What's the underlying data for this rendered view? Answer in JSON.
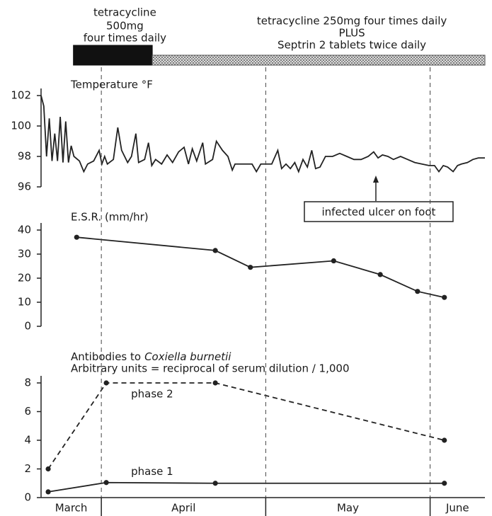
{
  "chart_data": [
    {
      "type": "timeline",
      "xlim": [
        20,
        101
      ],
      "treatments": [
        {
          "lines": [
            "tetracycline",
            "500mg",
            "four times daily"
          ],
          "start": 25.9,
          "end": 40.3,
          "fill": "solid",
          "color": "#111111"
        },
        {
          "lines": [
            "tetracycline 250mg four times daily",
            "PLUS",
            "Septrin 2 tablets twice daily"
          ],
          "start": 40.3,
          "end": 101,
          "fill": "stipple",
          "color": "#555555"
        }
      ]
    },
    {
      "type": "line",
      "title": "Temperature °F",
      "xlim": [
        20,
        101
      ],
      "ylim": [
        96,
        102
      ],
      "yticks": [
        96,
        98,
        100,
        102
      ],
      "markers": false,
      "x": [
        20,
        20.5,
        21,
        21.5,
        22,
        22.5,
        23,
        23.5,
        24,
        24.5,
        25,
        25.5,
        26,
        27,
        27.8,
        28.5,
        29.6,
        30.6,
        31.1,
        31.6,
        32.1,
        33.2,
        34,
        34.7,
        35.8,
        36.5,
        37.3,
        37.8,
        38.9,
        39.6,
        40.2,
        40.9,
        42,
        43,
        44,
        45.1,
        46.1,
        46.9,
        47.6,
        48.4,
        49.5,
        50,
        51.3,
        52,
        53.1,
        54.1,
        54.9,
        55.4,
        56.4,
        57.7,
        58.5,
        59.3,
        60.1,
        61.1,
        62.1,
        63.2,
        63.9,
        64.7,
        65.5,
        66.3,
        67,
        67.8,
        68.6,
        69.4,
        70.1,
        70.9,
        71.9,
        73.2,
        74.5,
        75.8,
        77.1,
        78.4,
        79.7,
        80.7,
        81.5,
        82.3,
        83.3,
        84.3,
        85.6,
        86.9,
        88.2,
        89.5,
        90.8,
        91.8,
        92.6,
        93.4,
        94.2,
        95.2,
        96,
        96.7,
        97.8,
        98.8,
        99.8,
        101
      ],
      "series": [
        {
          "color": "#222222",
          "values": [
            102,
            101.3,
            98,
            100.5,
            97.7,
            99.5,
            97.7,
            100.6,
            97.6,
            100.3,
            97.6,
            98.7,
            98,
            97.7,
            97,
            97.5,
            97.7,
            98.4,
            97.5,
            98,
            97.5,
            97.8,
            99.9,
            98.4,
            97.6,
            98,
            99.5,
            97.6,
            97.8,
            98.9,
            97.4,
            97.8,
            97.5,
            98.1,
            97.6,
            98.3,
            98.6,
            97.5,
            98.5,
            97.7,
            98.9,
            97.5,
            97.8,
            99,
            98.4,
            98,
            97.1,
            97.5,
            97.5,
            97.5,
            97.5,
            97,
            97.5,
            97.5,
            97.5,
            98.4,
            97.2,
            97.5,
            97.2,
            97.6,
            97,
            97.8,
            97.3,
            98.4,
            97.2,
            97.3,
            98,
            98,
            98.2,
            98,
            97.8,
            97.8,
            98,
            98.3,
            97.9,
            98.1,
            98,
            97.8,
            98,
            97.8,
            97.6,
            97.5,
            97.4,
            97.4,
            97,
            97.4,
            97.3,
            97,
            97.4,
            97.5,
            97.6,
            97.8,
            97.9,
            97.9
          ]
        }
      ],
      "annotation": {
        "text": "infected ulcer on foot",
        "x": 81.1
      }
    },
    {
      "type": "line",
      "title": "E.S.R. (mm/hr)",
      "xlim": [
        20,
        101
      ],
      "ylim": [
        0,
        40
      ],
      "yticks": [
        0,
        10,
        20,
        30,
        40
      ],
      "markers": true,
      "x": [
        26.5,
        51.8,
        58.2,
        73.4,
        81.9,
        88.7,
        93.6
      ],
      "series": [
        {
          "color": "#222222",
          "values": [
            37,
            31.5,
            24.5,
            27.2,
            21.5,
            14.5,
            12
          ]
        }
      ]
    },
    {
      "type": "line",
      "title_parts": [
        "Antibodies to",
        "Coxiella burnetii"
      ],
      "subtitle": "Arbitrary units = reciprocal of serum dilution / 1,000",
      "xlim": [
        20,
        101
      ],
      "ylim": [
        0,
        8
      ],
      "yticks": [
        0,
        2,
        4,
        6,
        8
      ],
      "markers": true,
      "categories": [
        "March",
        "April",
        "May",
        "June"
      ],
      "x_dividers": [
        31,
        61,
        91
      ],
      "x": [
        21.3,
        31.9,
        51.8,
        93.6
      ],
      "series": [
        {
          "name": "phase 2",
          "color": "#222222",
          "dashed": true,
          "values": [
            2,
            8,
            8,
            4
          ]
        },
        {
          "name": "phase 1",
          "color": "#222222",
          "dashed": false,
          "values": [
            0.4,
            1.05,
            1,
            1
          ]
        }
      ]
    }
  ]
}
